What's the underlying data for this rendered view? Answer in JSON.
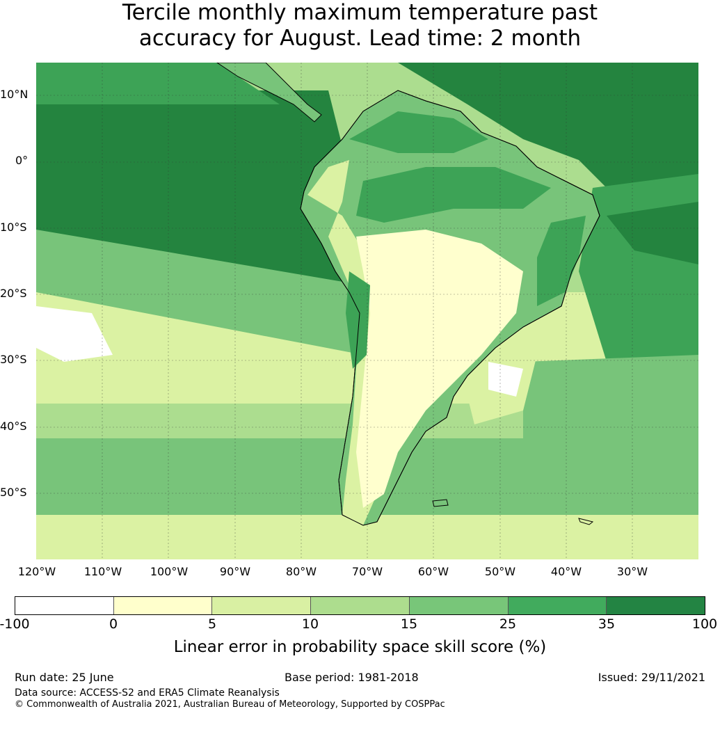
{
  "title": {
    "line1": "Tercile monthly maximum temperature past",
    "line2": "accuracy for August. Lead time: 2 month"
  },
  "map": {
    "lat_labels": [
      "10°N",
      "0°",
      "10°S",
      "20°S",
      "30°S",
      "40°S",
      "50°S"
    ],
    "lon_labels": [
      "120°W",
      "110°W",
      "100°W",
      "90°W",
      "80°W",
      "70°W",
      "60°W",
      "50°W",
      "40°W",
      "30°W"
    ],
    "extent": {
      "lon": [
        -120,
        -20
      ],
      "lat": [
        -60,
        15
      ]
    },
    "colors": {
      "ocean_north": "#24843f",
      "ocean_band": "#3da356",
      "ocean_mid": "#78c47a",
      "ocean_light": "#acdd8f",
      "pale": "#dbf2a3",
      "cream": "#ffffce",
      "white": "#ffffff",
      "coast": "#000000"
    }
  },
  "colorbar": {
    "ticks": [
      "-100",
      "0",
      "5",
      "10",
      "15",
      "25",
      "35",
      "100"
    ],
    "colors": [
      "#ffffff",
      "#ffffcc",
      "#d9f0a3",
      "#addd8e",
      "#78c679",
      "#41ab5d",
      "#238443"
    ],
    "label": "Linear error in probability space skill score (%)"
  },
  "footer": {
    "run_date": "Run date: 25 June",
    "base_period": "Base period: 1981-2018",
    "issued": "Issued: 29/11/2021",
    "data_source": "Data source: ACCESS-S2 and ERA5 Climate Reanalysis",
    "copyright": "© Commonwealth of Australia 2021, Australian Bureau of Meteorology, Supported by COSPPac"
  }
}
